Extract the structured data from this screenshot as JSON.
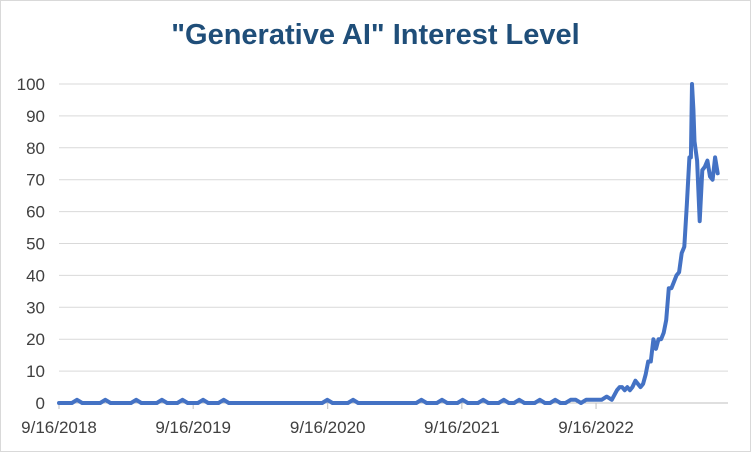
{
  "chart_data": {
    "type": "line",
    "title": "\"Generative AI\" Interest Level",
    "xlabel": "",
    "ylabel": "",
    "x_axis": {
      "type": "date",
      "start": "2018-09-16",
      "end": "2023-09-10",
      "tick_labels": [
        "9/16/2018",
        "9/16/2019",
        "9/16/2020",
        "9/16/2021",
        "9/16/2022"
      ],
      "tick_dates": [
        "2018-09-16",
        "2019-09-16",
        "2020-09-16",
        "2021-09-16",
        "2022-09-16"
      ]
    },
    "y_axis": {
      "range": [
        0,
        100
      ],
      "ticks": [
        0,
        10,
        20,
        30,
        40,
        50,
        60,
        70,
        80,
        90,
        100
      ]
    },
    "grid": "horizontal",
    "legend": "none",
    "series": [
      {
        "color": "#4472c4",
        "points": [
          [
            "2018-09-16",
            0
          ],
          [
            "2018-10-21",
            0
          ],
          [
            "2018-11-04",
            1
          ],
          [
            "2018-11-18",
            0
          ],
          [
            "2019-01-06",
            0
          ],
          [
            "2019-01-20",
            1
          ],
          [
            "2019-02-03",
            0
          ],
          [
            "2019-03-31",
            0
          ],
          [
            "2019-04-14",
            1
          ],
          [
            "2019-04-28",
            0
          ],
          [
            "2019-06-09",
            0
          ],
          [
            "2019-06-23",
            1
          ],
          [
            "2019-07-07",
            0
          ],
          [
            "2019-08-04",
            0
          ],
          [
            "2019-08-18",
            1
          ],
          [
            "2019-09-01",
            0
          ],
          [
            "2019-09-29",
            0
          ],
          [
            "2019-10-13",
            1
          ],
          [
            "2019-10-27",
            0
          ],
          [
            "2019-11-24",
            0
          ],
          [
            "2019-12-08",
            1
          ],
          [
            "2019-12-22",
            0
          ],
          [
            "2020-09-01",
            0
          ],
          [
            "2020-09-15",
            1
          ],
          [
            "2020-09-29",
            0
          ],
          [
            "2020-11-10",
            0
          ],
          [
            "2020-11-24",
            1
          ],
          [
            "2020-12-08",
            0
          ],
          [
            "2021-05-15",
            0
          ],
          [
            "2021-05-29",
            1
          ],
          [
            "2021-06-12",
            0
          ],
          [
            "2021-07-10",
            0
          ],
          [
            "2021-07-24",
            1
          ],
          [
            "2021-08-07",
            0
          ],
          [
            "2021-09-04",
            0
          ],
          [
            "2021-09-18",
            1
          ],
          [
            "2021-10-02",
            0
          ],
          [
            "2021-10-30",
            0
          ],
          [
            "2021-11-13",
            1
          ],
          [
            "2021-11-27",
            0
          ],
          [
            "2021-12-25",
            0
          ],
          [
            "2022-01-08",
            1
          ],
          [
            "2022-01-22",
            0
          ],
          [
            "2022-02-05",
            0
          ],
          [
            "2022-02-19",
            1
          ],
          [
            "2022-03-05",
            0
          ],
          [
            "2022-04-02",
            0
          ],
          [
            "2022-04-16",
            1
          ],
          [
            "2022-04-30",
            0
          ],
          [
            "2022-05-14",
            0
          ],
          [
            "2022-05-28",
            1
          ],
          [
            "2022-06-11",
            0
          ],
          [
            "2022-06-25",
            0
          ],
          [
            "2022-07-09",
            1
          ],
          [
            "2022-07-23",
            1
          ],
          [
            "2022-08-06",
            0
          ],
          [
            "2022-08-20",
            1
          ],
          [
            "2022-09-10",
            1
          ],
          [
            "2022-10-01",
            1
          ],
          [
            "2022-10-15",
            2
          ],
          [
            "2022-10-29",
            1
          ],
          [
            "2022-11-12",
            4
          ],
          [
            "2022-11-19",
            5
          ],
          [
            "2022-11-26",
            5
          ],
          [
            "2022-12-03",
            4
          ],
          [
            "2022-12-10",
            5
          ],
          [
            "2022-12-17",
            4
          ],
          [
            "2022-12-24",
            5
          ],
          [
            "2023-01-01",
            7
          ],
          [
            "2023-01-08",
            6
          ],
          [
            "2023-01-15",
            5
          ],
          [
            "2023-01-22",
            6
          ],
          [
            "2023-01-29",
            9
          ],
          [
            "2023-02-05",
            13
          ],
          [
            "2023-02-12",
            13
          ],
          [
            "2023-02-19",
            20
          ],
          [
            "2023-02-26",
            17
          ],
          [
            "2023-03-05",
            20
          ],
          [
            "2023-03-12",
            20
          ],
          [
            "2023-03-19",
            22
          ],
          [
            "2023-03-26",
            26
          ],
          [
            "2023-04-02",
            36
          ],
          [
            "2023-04-09",
            36
          ],
          [
            "2023-04-16",
            38
          ],
          [
            "2023-04-23",
            40
          ],
          [
            "2023-04-30",
            41
          ],
          [
            "2023-05-07",
            47
          ],
          [
            "2023-05-14",
            49
          ],
          [
            "2023-05-21",
            62
          ],
          [
            "2023-05-28",
            77
          ],
          [
            "2023-06-01",
            77
          ],
          [
            "2023-06-04",
            100
          ],
          [
            "2023-06-08",
            92
          ],
          [
            "2023-06-11",
            82
          ],
          [
            "2023-06-18",
            76
          ],
          [
            "2023-06-25",
            57
          ],
          [
            "2023-07-02",
            73
          ],
          [
            "2023-07-09",
            74
          ],
          [
            "2023-07-16",
            76
          ],
          [
            "2023-07-23",
            71
          ],
          [
            "2023-07-30",
            70
          ],
          [
            "2023-08-06",
            77
          ],
          [
            "2023-08-13",
            72
          ]
        ]
      }
    ]
  }
}
